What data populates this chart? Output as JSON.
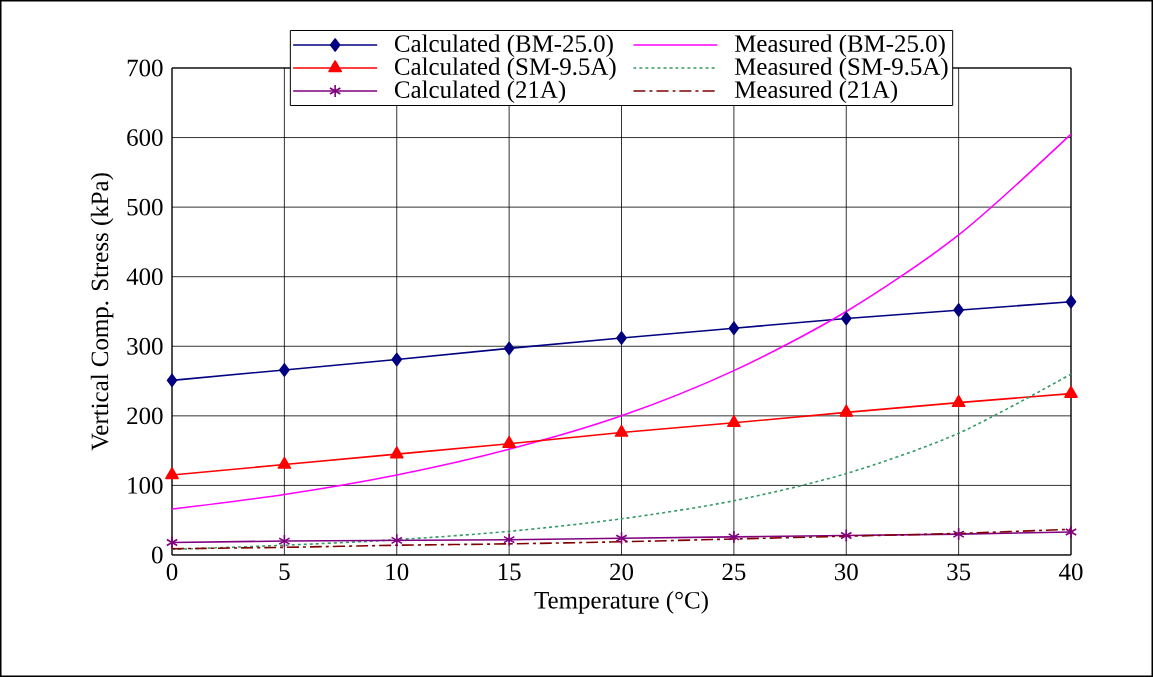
{
  "chart_data": {
    "type": "line",
    "xlabel": "Temperature (°C)",
    "ylabel": "Vertical Comp. Stress (kPa)",
    "x": [
      0,
      5,
      10,
      15,
      20,
      25,
      30,
      35,
      40
    ],
    "series": [
      {
        "name": "Calculated (BM-25.0)",
        "color": "#000080",
        "marker": "diamond",
        "line_style": "solid",
        "values": [
          251,
          266,
          281,
          297,
          312,
          326,
          340,
          352,
          364
        ]
      },
      {
        "name": "Measured (BM-25.0)",
        "color": "#ff00ff",
        "marker": "none",
        "line_style": "solid",
        "values": [
          66,
          87,
          115,
          152,
          200,
          265,
          350,
          460,
          605
        ]
      },
      {
        "name": "Calculated (SM-9.5A)",
        "color": "#ff0000",
        "marker": "triangle",
        "line_style": "solid",
        "values": [
          115,
          130,
          145,
          160,
          176,
          190,
          205,
          219,
          232
        ]
      },
      {
        "name": "Measured (SM-9.5A)",
        "color": "#339966",
        "marker": "none",
        "line_style": "dotted",
        "values": [
          8,
          14,
          22,
          34,
          52,
          78,
          117,
          175,
          260
        ]
      },
      {
        "name": "Calculated (21A)",
        "color": "#800080",
        "marker": "cross",
        "line_style": "solid",
        "values": [
          18,
          20,
          21,
          22,
          24,
          26,
          28,
          30,
          33
        ]
      },
      {
        "name": "Measured (21A)",
        "color": "#800000",
        "marker": "none",
        "line_style": "dashdot",
        "values": [
          9,
          11,
          14,
          16,
          19,
          23,
          27,
          31,
          37
        ]
      }
    ],
    "xlim": [
      0,
      40
    ],
    "xticks": [
      0,
      5,
      10,
      15,
      20,
      25,
      30,
      35,
      40
    ],
    "ylim": [
      0,
      700
    ],
    "yticks": [
      0,
      100,
      200,
      300,
      400,
      500,
      600,
      700
    ],
    "grid": true,
    "legend": "top"
  }
}
